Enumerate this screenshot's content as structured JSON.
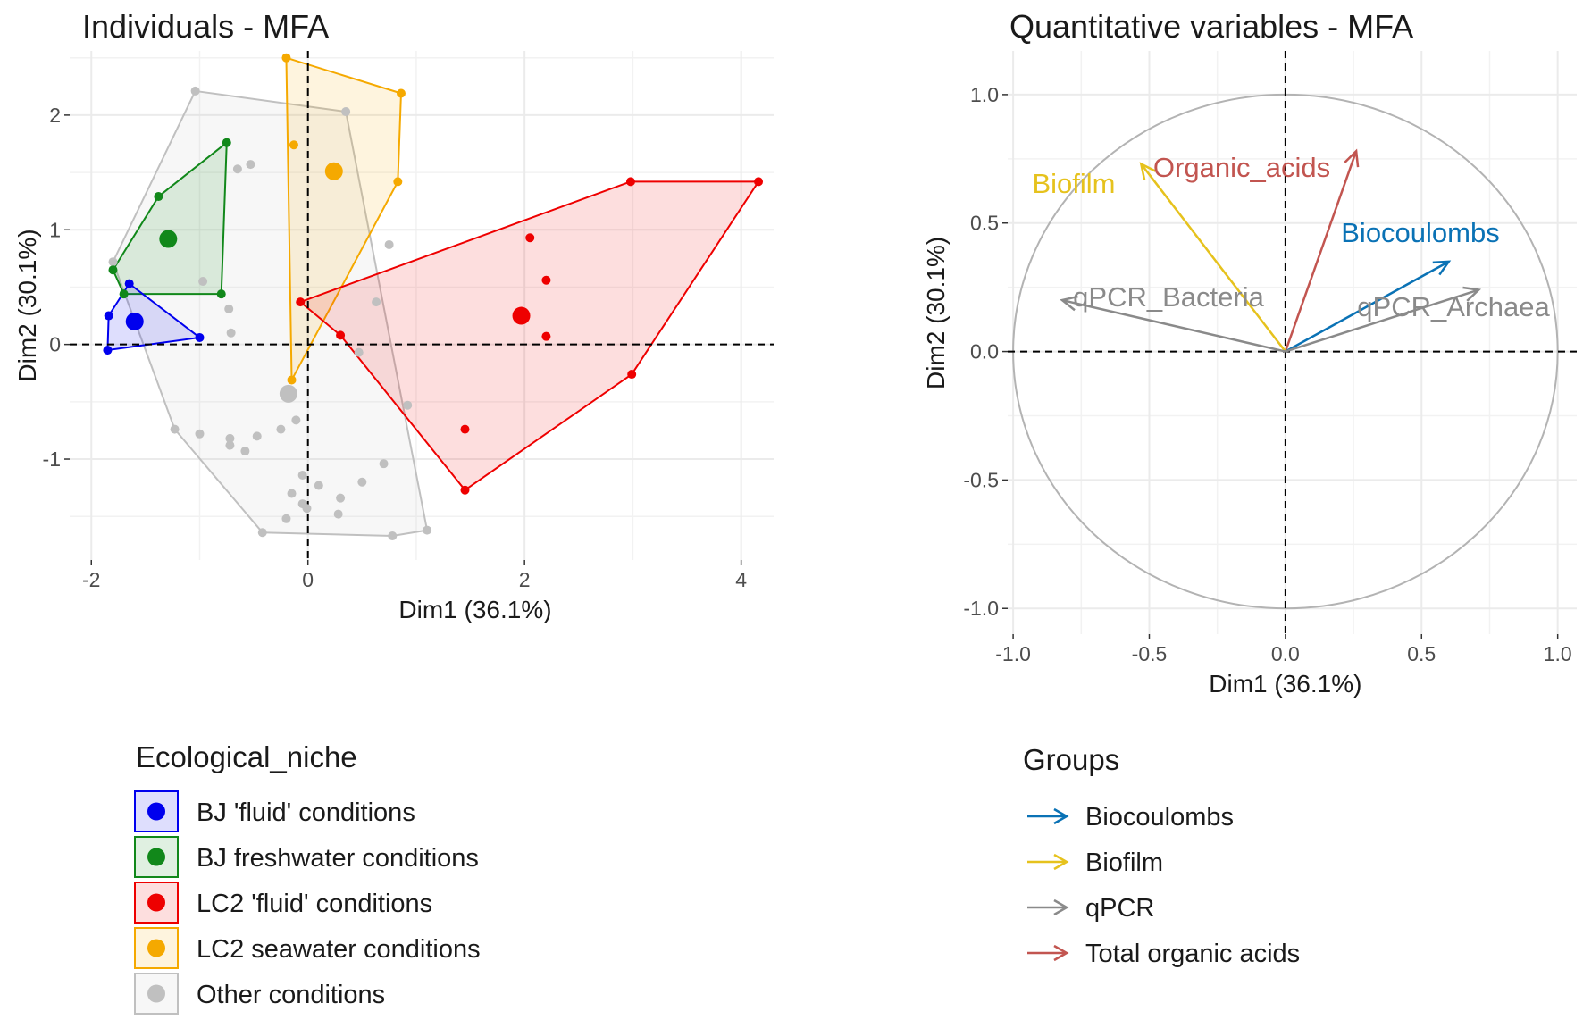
{
  "chart_data": [
    {
      "type": "scatter",
      "title": "Individuals - MFA",
      "xlabel": "Dim1 (36.1%)",
      "ylabel": "Dim2 (30.1%)",
      "xlim": [
        -2.2,
        4.3
      ],
      "ylim": [
        -1.88,
        2.56
      ],
      "xticks": [
        -2,
        0,
        2,
        4
      ],
      "xtick_labels": [
        "-2",
        "0",
        "2",
        "4"
      ],
      "yticks": [
        -1,
        0,
        1,
        2
      ],
      "ytick_labels": [
        "-1",
        "0",
        "1",
        "2"
      ],
      "grid": true,
      "reference_lines": {
        "x": 0,
        "y": 0
      },
      "legend": {
        "title": "Ecological_niche",
        "position": "bottom-left",
        "entries": [
          "BJ 'fluid' conditions",
          "BJ freshwater conditions",
          "LC2 'fluid' conditions",
          "LC2 seawater conditions",
          "Other conditions"
        ]
      },
      "series": [
        {
          "name": "BJ 'fluid' conditions",
          "color": "#0000ee",
          "centroid": [
            -1.6,
            0.2
          ],
          "hull": [
            [
              -1.84,
              0.25
            ],
            [
              -1.65,
              0.53
            ],
            [
              -1.0,
              0.06
            ],
            [
              -1.85,
              -0.05
            ]
          ],
          "points": [
            [
              -1.84,
              0.25
            ],
            [
              -1.65,
              0.53
            ],
            [
              -1.0,
              0.06
            ],
            [
              -1.85,
              -0.05
            ]
          ]
        },
        {
          "name": "BJ freshwater conditions",
          "color": "#11881a",
          "centroid": [
            -1.29,
            0.92
          ],
          "hull": [
            [
              -1.8,
              0.65
            ],
            [
              -1.38,
              1.29
            ],
            [
              -0.75,
              1.76
            ],
            [
              -0.8,
              0.44
            ],
            [
              -1.7,
              0.44
            ]
          ],
          "points": [
            [
              -1.8,
              0.65
            ],
            [
              -1.38,
              1.29
            ],
            [
              -0.75,
              1.76
            ],
            [
              -0.8,
              0.44
            ],
            [
              -1.7,
              0.44
            ]
          ]
        },
        {
          "name": "LC2 'fluid' conditions",
          "color": "#ee0000",
          "centroid": [
            1.97,
            0.25
          ],
          "hull": [
            [
              -0.07,
              0.37
            ],
            [
              2.98,
              1.42
            ],
            [
              4.16,
              1.42
            ],
            [
              2.99,
              -0.26
            ],
            [
              1.45,
              -1.27
            ],
            [
              0.3,
              0.08
            ]
          ],
          "points": [
            [
              -0.07,
              0.37
            ],
            [
              2.98,
              1.42
            ],
            [
              4.16,
              1.42
            ],
            [
              2.99,
              -0.26
            ],
            [
              1.45,
              -1.27
            ],
            [
              0.3,
              0.08
            ],
            [
              2.05,
              0.93
            ],
            [
              2.2,
              0.56
            ],
            [
              2.2,
              0.07
            ],
            [
              1.45,
              -0.74
            ]
          ]
        },
        {
          "name": "LC2 seawater conditions",
          "color": "#f5a900",
          "centroid": [
            0.24,
            1.51
          ],
          "hull": [
            [
              -0.2,
              2.5
            ],
            [
              0.86,
              2.19
            ],
            [
              0.83,
              1.42
            ],
            [
              -0.15,
              -0.31
            ]
          ],
          "points": [
            [
              -0.2,
              2.5
            ],
            [
              0.86,
              2.19
            ],
            [
              0.83,
              1.42
            ],
            [
              -0.15,
              -0.31
            ],
            [
              -0.13,
              1.74
            ]
          ]
        },
        {
          "name": "Other conditions",
          "color": "#c0c0c0",
          "centroid": [
            -0.18,
            -0.43
          ],
          "hull": [
            [
              -1.04,
              2.21
            ],
            [
              0.35,
              2.03
            ],
            [
              1.1,
              -1.62
            ],
            [
              0.78,
              -1.67
            ],
            [
              -0.42,
              -1.64
            ],
            [
              -1.23,
              -0.74
            ],
            [
              -1.8,
              0.72
            ]
          ],
          "points": [
            [
              -1.04,
              2.21
            ],
            [
              0.35,
              2.03
            ],
            [
              1.1,
              -1.62
            ],
            [
              0.78,
              -1.67
            ],
            [
              -0.42,
              -1.64
            ],
            [
              -1.23,
              -0.74
            ],
            [
              -1.8,
              0.72
            ],
            [
              -0.65,
              1.53
            ],
            [
              -0.53,
              1.57
            ],
            [
              -0.97,
              0.55
            ],
            [
              -0.73,
              0.31
            ],
            [
              -0.71,
              0.1
            ],
            [
              -1.0,
              -0.78
            ],
            [
              -0.72,
              -0.82
            ],
            [
              -0.72,
              -0.88
            ],
            [
              -0.58,
              -0.93
            ],
            [
              -0.47,
              -0.8
            ],
            [
              -0.25,
              -0.74
            ],
            [
              -0.11,
              -0.66
            ],
            [
              0.92,
              -0.53
            ],
            [
              0.7,
              -1.04
            ],
            [
              0.5,
              -1.2
            ],
            [
              0.3,
              -1.34
            ],
            [
              0.1,
              -1.23
            ],
            [
              -0.15,
              -1.3
            ],
            [
              -0.05,
              -1.39
            ],
            [
              -0.01,
              -1.43
            ],
            [
              -0.2,
              -1.52
            ],
            [
              0.28,
              -1.48
            ],
            [
              -0.05,
              -1.14
            ],
            [
              0.75,
              0.87
            ],
            [
              0.63,
              0.37
            ],
            [
              0.47,
              -0.07
            ]
          ]
        }
      ]
    },
    {
      "type": "correlation-circle",
      "title": "Quantitative variables - MFA",
      "xlabel": "Dim1 (36.1%)",
      "ylabel": "Dim2 (30.1%)",
      "xlim": [
        -1.02,
        1.07
      ],
      "ylim": [
        -1.1,
        1.17
      ],
      "xticks": [
        -1.0,
        -0.5,
        0.0,
        0.5,
        1.0
      ],
      "xtick_labels": [
        "-1.0",
        "-0.5",
        "0.0",
        "0.5",
        "1.0"
      ],
      "yticks": [
        -1.0,
        -0.5,
        0.0,
        0.5,
        1.0
      ],
      "ytick_labels": [
        "-1.0",
        "-0.5",
        "0.0",
        "0.5",
        "1.0"
      ],
      "grid": true,
      "reference_lines": {
        "x": 0,
        "y": 0
      },
      "unit_circle": true,
      "legend": {
        "title": "Groups",
        "position": "bottom-right",
        "entries": [
          "Biocoulombs",
          "Biofilm",
          "qPCR",
          "Total organic acids"
        ]
      },
      "variables": [
        {
          "name": "Organic_acids",
          "group": "Total organic acids",
          "x": 0.26,
          "y": 0.78
        },
        {
          "name": "Biofilm",
          "group": "Biofilm",
          "x": -0.53,
          "y": 0.73
        },
        {
          "name": "Biocoulombs",
          "group": "Biocoulombs",
          "x": 0.6,
          "y": 0.35
        },
        {
          "name": "qPCR_Bacteria",
          "group": "qPCR",
          "x": -0.82,
          "y": 0.2
        },
        {
          "name": "qPCR_Archaea",
          "group": "qPCR",
          "x": 0.71,
          "y": 0.24
        }
      ],
      "group_colors": {
        "Biocoulombs": "#0a72b5",
        "Biofilm": "#e6c21d",
        "qPCR": "#8a8a8a",
        "Total organic acids": "#c25550"
      }
    }
  ]
}
